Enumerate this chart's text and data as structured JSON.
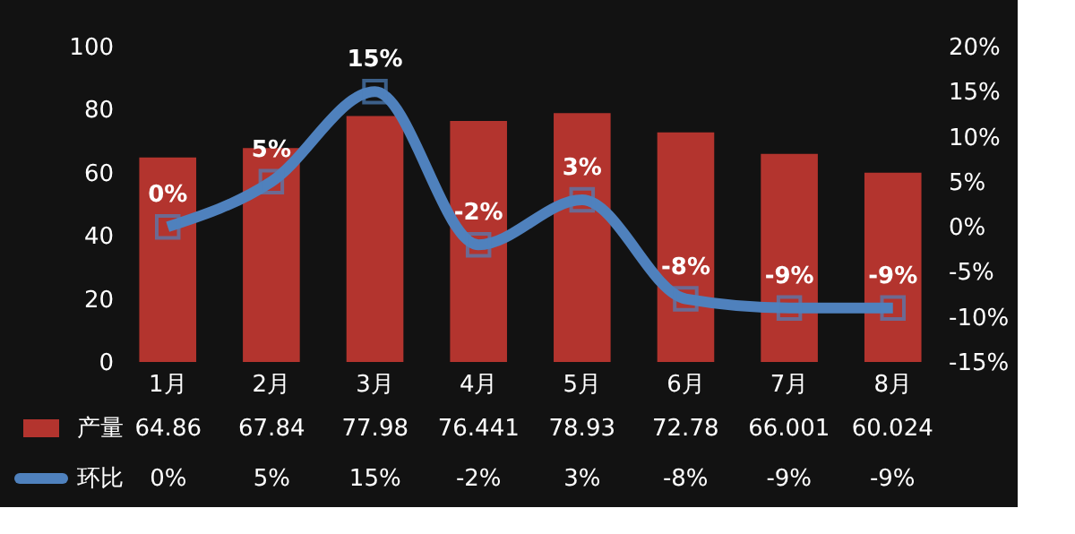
{
  "chart_data": {
    "type": "bar",
    "categories": [
      "1月",
      "2月",
      "3月",
      "4月",
      "5月",
      "6月",
      "7月",
      "8月"
    ],
    "series": [
      {
        "name": "产量",
        "color": "#b3342e",
        "values": [
          64.86,
          67.84,
          77.98,
          76.441,
          78.93,
          72.78,
          66.001,
          60.024
        ]
      },
      {
        "name": "环比",
        "type": "line",
        "axis": "y2",
        "color": "#4f81bd",
        "values": [
          0,
          5,
          15,
          -2,
          3,
          -8,
          -9,
          -9
        ],
        "value_labels": [
          "0%",
          "5%",
          "15%",
          "-2%",
          "3%",
          "-8%",
          "-9%",
          "-9%"
        ]
      }
    ],
    "ylim": [
      0,
      100
    ],
    "yticks": [
      0,
      20,
      40,
      60,
      80,
      100
    ],
    "y2lim": [
      -15,
      20
    ],
    "y2ticks": [
      {
        "value": -15,
        "label": "-15%"
      },
      {
        "value": -10,
        "label": "-10%"
      },
      {
        "value": -5,
        "label": "-5%"
      },
      {
        "value": 0,
        "label": "0%"
      },
      {
        "value": 5,
        "label": "5%"
      },
      {
        "value": 10,
        "label": "10%"
      },
      {
        "value": 15,
        "label": "15%"
      },
      {
        "value": 20,
        "label": "20%"
      }
    ],
    "marker": "square",
    "data_labels": true,
    "legend": "bottom",
    "grid": false
  }
}
